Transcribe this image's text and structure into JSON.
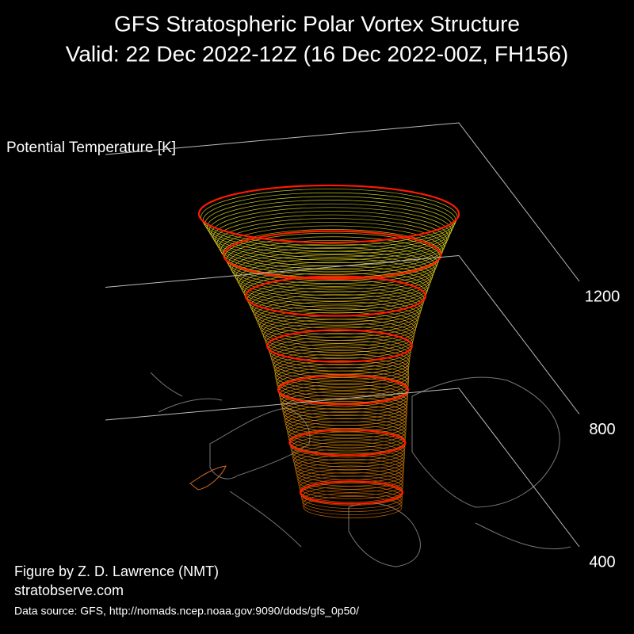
{
  "chart_data": {
    "type": "vortex3d",
    "title": "GFS Stratospheric Polar Vortex Structure",
    "subtitle": "Valid: 22 Dec 2022-12Z  (16 Dec 2022-00Z, FH156)",
    "zlabel": "Potential Temperature [K]",
    "zlim": [
      400,
      1200
    ],
    "zticks": [
      400,
      800,
      1200
    ],
    "credit": "Figure by Z. D. Lawrence (NMT)",
    "website": "stratobserve.com",
    "source": "Data source: GFS, http://nomads.ncep.noaa.gov:9090/dods/gfs_0p50/"
  }
}
